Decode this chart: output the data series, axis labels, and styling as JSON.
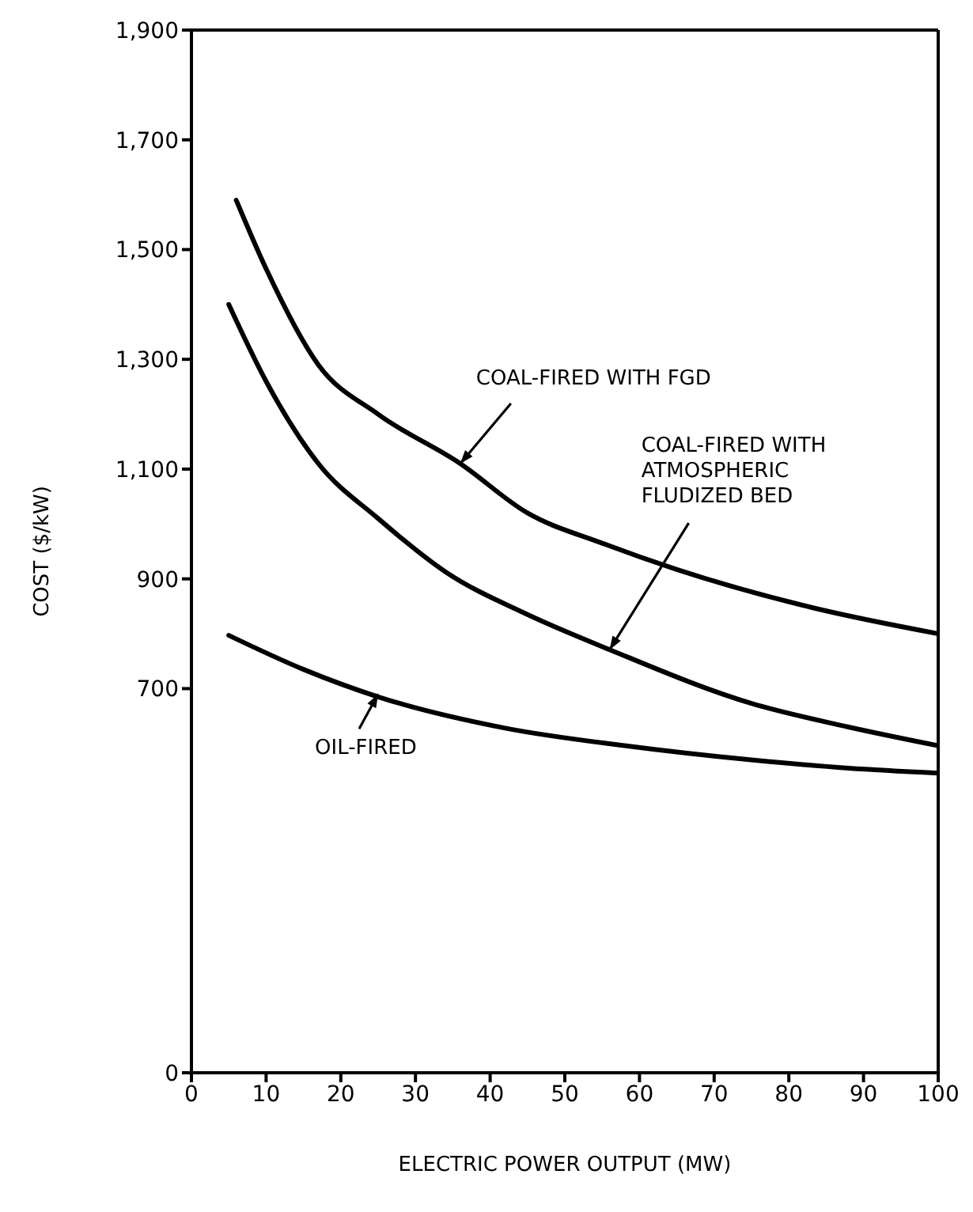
{
  "chart_data": {
    "type": "line",
    "xlabel": "ELECTRIC POWER OUTPUT (MW)",
    "ylabel": "COST ($/kW)",
    "xlim": [
      0,
      100
    ],
    "xticks": [
      0,
      10,
      20,
      30,
      40,
      50,
      60,
      70,
      80,
      90,
      100
    ],
    "ylim": [
      0,
      1900
    ],
    "yticks": [
      0,
      {
        "value": 700,
        "label": "700"
      },
      {
        "value": 900,
        "label": "900"
      },
      {
        "value": 1100,
        "label": "1,100"
      },
      {
        "value": 1300,
        "label": "1,300"
      },
      {
        "value": 1500,
        "label": "1,500"
      },
      {
        "value": 1700,
        "label": "1,700"
      },
      {
        "value": 1900,
        "label": "1,900"
      }
    ],
    "marker": "none",
    "line_style": "solid",
    "series": [
      {
        "color": "#000000",
        "x": [
          6,
          10,
          17,
          25,
          36,
          45,
          55,
          65,
          83,
          100
        ],
        "values": [
          1590,
          1465,
          1290,
          1200,
          1110,
          1020,
          965,
          917,
          848,
          800
        ]
      },
      {
        "color": "#000000",
        "x": [
          5,
          10,
          17,
          25,
          34,
          45,
          56,
          75,
          88,
          100
        ],
        "values": [
          1400,
          1260,
          1110,
          1010,
          913,
          835,
          771,
          673,
          630,
          596
        ]
      },
      {
        "color": "#000000",
        "x": [
          5,
          15,
          25,
          42,
          58,
          75,
          88,
          100
        ],
        "values": [
          797,
          735,
          685,
          628,
          596,
          570,
          555,
          546
        ]
      }
    ],
    "annotations": [
      {
        "text": "COAL-FIRED WITH FGD",
        "x": 36,
        "y": 1110
      },
      {
        "text": "COAL-FIRED WITH\nATMOSPHERIC\nFLUDIZED BED",
        "x": 56,
        "y": 771
      },
      {
        "text": "OIL-FIRED",
        "x": 25,
        "y": 690
      }
    ]
  }
}
